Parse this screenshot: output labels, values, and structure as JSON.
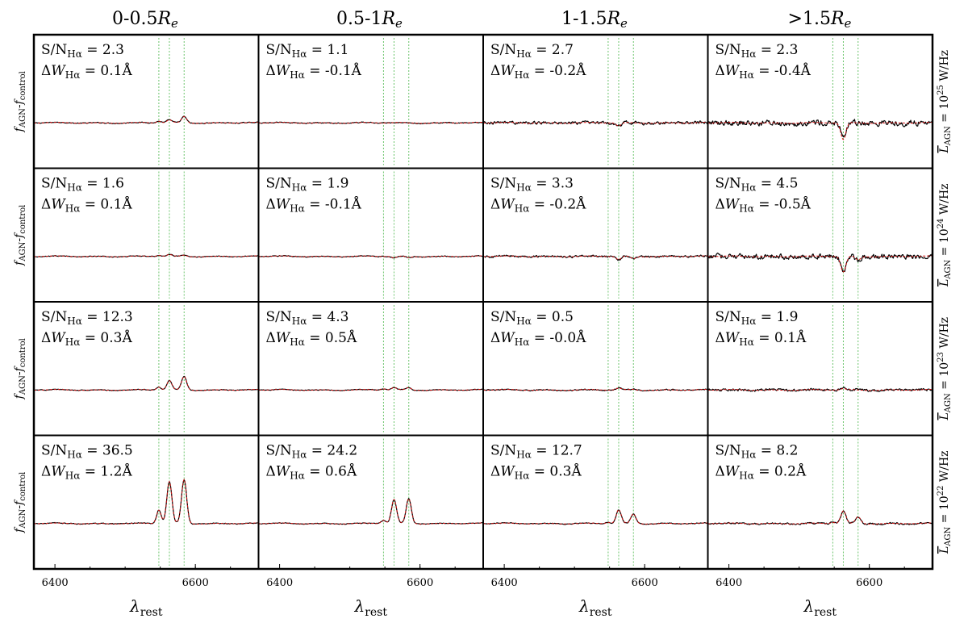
{
  "chart_data": {
    "type": "line",
    "columns": [
      "0-0.5R_e",
      "0.5-1R_e",
      "1-1.5R_e",
      ">1.5R_e"
    ],
    "rows": [
      "L_AGN = 10^25 W/Hz",
      "L_AGN = 10^24 W/Hz",
      "L_AGN = 10^23 W/Hz",
      "L_AGN = 10^22 W/Hz"
    ],
    "xlabel": "λrest",
    "ylabel": "fAGN-fcontrol",
    "xticks": [
      6400,
      6600
    ],
    "xlim": [
      6370,
      6690
    ],
    "marker_lines": [
      6548,
      6563,
      6584
    ],
    "panels": [
      [
        {
          "sn": "2.3",
          "dw": "0.1Å"
        },
        {
          "sn": "1.1",
          "dw": "-0.1Å"
        },
        {
          "sn": "2.7",
          "dw": "-0.2Å"
        },
        {
          "sn": "2.3",
          "dw": "-0.4Å"
        }
      ],
      [
        {
          "sn": "1.6",
          "dw": "0.1Å"
        },
        {
          "sn": "1.9",
          "dw": "-0.1Å"
        },
        {
          "sn": "3.3",
          "dw": "-0.2Å"
        },
        {
          "sn": "4.5",
          "dw": "-0.5Å"
        }
      ],
      [
        {
          "sn": "12.3",
          "dw": "0.3Å"
        },
        {
          "sn": "4.3",
          "dw": "0.5Å"
        },
        {
          "sn": "0.5",
          "dw": "-0.0Å"
        },
        {
          "sn": "1.9",
          "dw": "0.1Å"
        }
      ],
      [
        {
          "sn": "36.5",
          "dw": "1.2Å"
        },
        {
          "sn": "24.2",
          "dw": "0.6Å"
        },
        {
          "sn": "12.7",
          "dw": "0.3Å"
        },
        {
          "sn": "8.2",
          "dw": "0.2Å"
        }
      ]
    ],
    "series_amplitudes": [
      [
        {
          "n2a": 0.15,
          "ha": 0.25,
          "n2b": 0.55,
          "noise": 0.06
        },
        {
          "n2a": 0,
          "ha": 0,
          "n2b": 0,
          "noise": 0.06
        },
        {
          "n2a": 0,
          "ha": -0.3,
          "n2b": 0,
          "noise": 0.22
        },
        {
          "n2a": 0,
          "ha": -1.5,
          "n2b": 0,
          "noise": 0.42
        }
      ],
      [
        {
          "n2a": 0.1,
          "ha": 0.15,
          "n2b": 0.1,
          "noise": 0.05
        },
        {
          "n2a": 0,
          "ha": -0.15,
          "n2b": -0.1,
          "noise": 0.06
        },
        {
          "n2a": 0,
          "ha": -0.3,
          "n2b": -0.2,
          "noise": 0.14
        },
        {
          "n2a": 0,
          "ha": -1.4,
          "n2b": -0.3,
          "noise": 0.38
        }
      ],
      [
        {
          "n2a": 0.25,
          "ha": 0.8,
          "n2b": 1.2,
          "noise": 0.05
        },
        {
          "n2a": 0.1,
          "ha": 0.2,
          "n2b": 0.2,
          "noise": 0.05
        },
        {
          "n2a": 0,
          "ha": 0.15,
          "n2b": 0.05,
          "noise": 0.08
        },
        {
          "n2a": 0,
          "ha": 0.1,
          "n2b": 0,
          "noise": 0.18
        }
      ],
      [
        {
          "n2a": 1.2,
          "ha": 3.7,
          "n2b": 3.9,
          "noise": 0.06
        },
        {
          "n2a": 0.3,
          "ha": 2.1,
          "n2b": 2.2,
          "noise": 0.05
        },
        {
          "n2a": 0.1,
          "ha": 1.2,
          "n2b": 0.85,
          "noise": 0.06
        },
        {
          "n2a": 0.1,
          "ha": 1.1,
          "n2b": 0.6,
          "noise": 0.12
        }
      ]
    ]
  }
}
